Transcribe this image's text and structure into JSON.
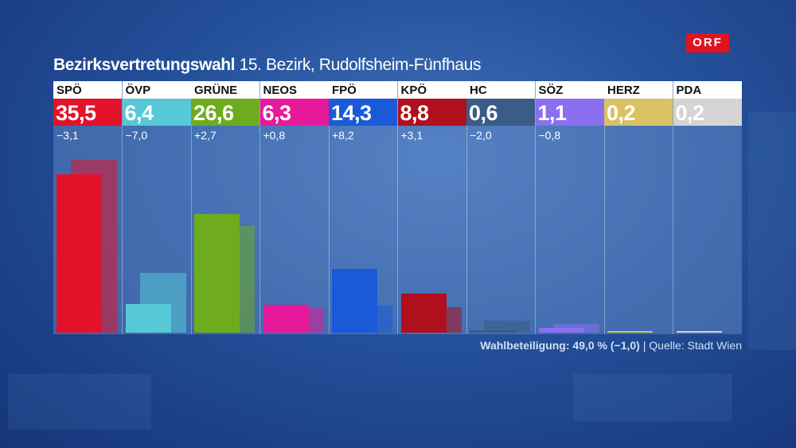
{
  "logo": "ORF",
  "header": {
    "title_bold": "Bezirksvertretungswahl",
    "title_rest": "15. Bezirk, Rudolfsheim-Fünfhaus"
  },
  "chart_data": {
    "type": "bar",
    "categories": [
      "SPÖ",
      "ÖVP",
      "GRÜNE",
      "NEOS",
      "FPÖ",
      "KPÖ",
      "HC",
      "SÖZ",
      "HERZ",
      "PDA"
    ],
    "series": [
      {
        "values": [
          35.5,
          6.4,
          26.6,
          6.3,
          14.3,
          8.8,
          0.6,
          1.1,
          0.2,
          0.2
        ]
      },
      {
        "values": [
          38.6,
          13.4,
          23.9,
          5.5,
          6.1,
          5.7,
          2.6,
          1.9,
          0,
          0
        ]
      }
    ],
    "value_labels": [
      "35,5",
      "6,4",
      "26,6",
      "6,3",
      "14,3",
      "8,8",
      "0,6",
      "1,1",
      "0,2",
      "0,2"
    ],
    "diff_labels": [
      "−3,1",
      "−7,0",
      "+2,7",
      "+0,8",
      "+8,2",
      "+3,1",
      "−2,0",
      "−0,8",
      "",
      ""
    ],
    "colors": [
      "#e3122a",
      "#56c8d6",
      "#6fac1d",
      "#e6199a",
      "#1a5ad9",
      "#b00f1e",
      "#3a5c86",
      "#8a6ff0",
      "#d9c264",
      "#d4d4d4"
    ],
    "ylim": [
      0,
      42
    ]
  },
  "footer": {
    "turnout": "Wahlbeteiligung: 49,0 % (−1,0)",
    "separator": "|",
    "source": "Quelle: Stadt Wien"
  }
}
